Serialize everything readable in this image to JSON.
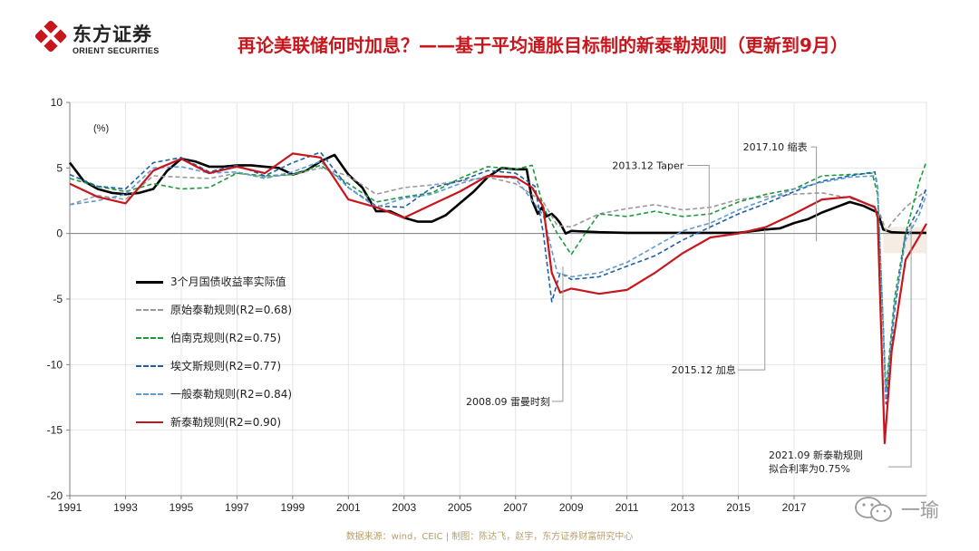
{
  "header": {
    "logo_cn": "东方证券",
    "logo_en": "ORIENT SECURITIES",
    "title": "再论美联储何时加息？——基于平均通胀目标制的新泰勒规则（更新到9月）",
    "brand_color": "#c8161d"
  },
  "footer": {
    "source": "数据来源：wind，CEIC | 制图：陈达飞，赵宇，东方证券财富研究中心"
  },
  "watermark": {
    "name": "一瑜"
  },
  "chart_data": {
    "type": "line",
    "title": "",
    "unit_label": "(%)",
    "xlim": [
      1991,
      2021.75
    ],
    "ylim": [
      -20,
      10
    ],
    "x_ticks": [
      1991,
      1993,
      1995,
      1997,
      1999,
      2001,
      2003,
      2005,
      2007,
      2009,
      2011,
      2013,
      2015,
      2017
    ],
    "y_ticks": [
      10,
      5,
      0,
      -5,
      -10,
      -15,
      -20
    ],
    "series": [
      {
        "name": "3个月国债收益率实际值",
        "color": "#000000",
        "dash": "solid",
        "width": 2.6,
        "points": [
          [
            1991,
            5.4
          ],
          [
            1991.5,
            4
          ],
          [
            1992,
            3.4
          ],
          [
            1992.5,
            3.1
          ],
          [
            1993,
            3
          ],
          [
            1993.5,
            3.1
          ],
          [
            1994,
            3.4
          ],
          [
            1994.5,
            4.8
          ],
          [
            1995,
            5.7
          ],
          [
            1995.5,
            5.5
          ],
          [
            1996,
            5.1
          ],
          [
            1996.5,
            5.1
          ],
          [
            1997,
            5.2
          ],
          [
            1997.5,
            5.2
          ],
          [
            1998,
            5.1
          ],
          [
            1998.5,
            5
          ],
          [
            1999,
            4.5
          ],
          [
            1999.5,
            4.8
          ],
          [
            2000,
            5.5
          ],
          [
            2000.5,
            6
          ],
          [
            2001,
            4.5
          ],
          [
            2001.5,
            3.5
          ],
          [
            2002,
            1.7
          ],
          [
            2002.5,
            1.7
          ],
          [
            2003,
            1.2
          ],
          [
            2003.5,
            0.9
          ],
          [
            2004,
            0.9
          ],
          [
            2004.5,
            1.4
          ],
          [
            2005,
            2.3
          ],
          [
            2005.5,
            3.2
          ],
          [
            2006,
            4.3
          ],
          [
            2006.5,
            5
          ],
          [
            2007,
            4.9
          ],
          [
            2007.4,
            4.9
          ],
          [
            2007.6,
            2.5
          ],
          [
            2007.8,
            1.5
          ],
          [
            2007.95,
            2
          ],
          [
            2008.1,
            1.3
          ],
          [
            2008.3,
            1.5
          ],
          [
            2008.45,
            1.2
          ],
          [
            2008.6,
            0.8
          ],
          [
            2008.8,
            0
          ],
          [
            2009,
            0.2
          ],
          [
            2010,
            0.1
          ],
          [
            2011,
            0.05
          ],
          [
            2012,
            0.05
          ],
          [
            2013,
            0.05
          ],
          [
            2014,
            0.05
          ],
          [
            2015,
            0.05
          ],
          [
            2015.95,
            0.3
          ],
          [
            2016.5,
            0.4
          ],
          [
            2017,
            0.8
          ],
          [
            2017.5,
            1.1
          ],
          [
            2018,
            1.6
          ],
          [
            2018.5,
            2
          ],
          [
            2019,
            2.4
          ],
          [
            2019.5,
            2.1
          ],
          [
            2020,
            1.6
          ],
          [
            2020.2,
            0.3
          ],
          [
            2020.5,
            0.1
          ],
          [
            2021,
            0.05
          ],
          [
            2021.75,
            0.05
          ]
        ]
      },
      {
        "name": "原始泰勒规则(R2=0.68)",
        "color": "#9a9a9a",
        "dash": "5,3",
        "width": 1.6,
        "points": [
          [
            1991,
            2.2
          ],
          [
            1992,
            2.9
          ],
          [
            1993,
            2.6
          ],
          [
            1994,
            4.4
          ],
          [
            1995,
            4.3
          ],
          [
            1996,
            4.2
          ],
          [
            1997,
            4.6
          ],
          [
            1998,
            4.3
          ],
          [
            1999,
            4.5
          ],
          [
            2000,
            5
          ],
          [
            2001,
            4.4
          ],
          [
            2002,
            3
          ],
          [
            2003,
            3.5
          ],
          [
            2004,
            3.7
          ],
          [
            2005,
            4
          ],
          [
            2006,
            4.3
          ],
          [
            2007,
            3.8
          ],
          [
            2008,
            2.4
          ],
          [
            2008.5,
            0.6
          ],
          [
            2009,
            0.5
          ],
          [
            2010,
            1.5
          ],
          [
            2011,
            1.9
          ],
          [
            2012,
            2.2
          ],
          [
            2013,
            1.8
          ],
          [
            2014,
            2
          ],
          [
            2015,
            2.6
          ],
          [
            2016,
            2.8
          ],
          [
            2017,
            3
          ],
          [
            2018,
            3.1
          ],
          [
            2019,
            2.7
          ],
          [
            2020,
            2
          ],
          [
            2020.3,
            0.2
          ],
          [
            2020.5,
            0.8
          ],
          [
            2021,
            2
          ],
          [
            2021.75,
            3.3
          ]
        ]
      },
      {
        "name": "伯南克规则(R2=0.75)",
        "color": "#1e9a3a",
        "dash": "5,3",
        "width": 1.6,
        "points": [
          [
            1991,
            4.2
          ],
          [
            1992,
            3.6
          ],
          [
            1993,
            3.2
          ],
          [
            1994,
            3.8
          ],
          [
            1995,
            3.4
          ],
          [
            1996,
            3.5
          ],
          [
            1997,
            4.6
          ],
          [
            1998,
            4.4
          ],
          [
            1999,
            4.5
          ],
          [
            2000,
            5.2
          ],
          [
            2001,
            3.8
          ],
          [
            2002,
            2.4
          ],
          [
            2003,
            2.8
          ],
          [
            2004,
            3.1
          ],
          [
            2005,
            4.2
          ],
          [
            2006,
            5.1
          ],
          [
            2007,
            4.9
          ],
          [
            2007.6,
            5.2
          ],
          [
            2008,
            2
          ],
          [
            2008.5,
            0
          ],
          [
            2009,
            -1.6
          ],
          [
            2009.5,
            0
          ],
          [
            2010,
            1.5
          ],
          [
            2011,
            1.3
          ],
          [
            2012,
            1.7
          ],
          [
            2013,
            1.3
          ],
          [
            2014,
            1.5
          ],
          [
            2015,
            2.4
          ],
          [
            2016,
            3
          ],
          [
            2017,
            3.4
          ],
          [
            2018,
            4.4
          ],
          [
            2019,
            4.5
          ],
          [
            2019.8,
            4.6
          ],
          [
            2020,
            3
          ],
          [
            2020.3,
            -12
          ],
          [
            2020.6,
            -5
          ],
          [
            2021,
            0
          ],
          [
            2021.5,
            4
          ],
          [
            2021.75,
            5.5
          ]
        ]
      },
      {
        "name": "埃文斯规则(R2=0.77)",
        "color": "#1f5fa6",
        "dash": "5,3",
        "width": 1.6,
        "points": [
          [
            1991,
            4.5
          ],
          [
            1992,
            3.6
          ],
          [
            1993,
            3.4
          ],
          [
            1994,
            5.4
          ],
          [
            1995,
            5.8
          ],
          [
            1996,
            4.7
          ],
          [
            1997,
            5.2
          ],
          [
            1998,
            4.4
          ],
          [
            1999,
            5.4
          ],
          [
            2000,
            6.2
          ],
          [
            2001,
            3.5
          ],
          [
            2002,
            2.1
          ],
          [
            2003,
            2
          ],
          [
            2004,
            3.5
          ],
          [
            2005,
            4
          ],
          [
            2006,
            4.8
          ],
          [
            2007,
            4.6
          ],
          [
            2007.7,
            3.6
          ],
          [
            2008,
            0
          ],
          [
            2008.3,
            -5.2
          ],
          [
            2008.6,
            -3
          ],
          [
            2009,
            -3.5
          ],
          [
            2010,
            -3.3
          ],
          [
            2011,
            -2.5
          ],
          [
            2012,
            -1.7
          ],
          [
            2013,
            -0.5
          ],
          [
            2014,
            0.5
          ],
          [
            2015,
            1.5
          ],
          [
            2016,
            2.3
          ],
          [
            2017,
            3.2
          ],
          [
            2018,
            4
          ],
          [
            2019,
            4.4
          ],
          [
            2019.9,
            4.7
          ],
          [
            2020,
            3.5
          ],
          [
            2020.3,
            -13
          ],
          [
            2020.6,
            -6
          ],
          [
            2021,
            0
          ],
          [
            2021.5,
            2
          ],
          [
            2021.75,
            3.5
          ]
        ]
      },
      {
        "name": "一般泰勒规则(R2=0.84)",
        "color": "#5b9bd5",
        "dash": "5,3",
        "width": 1.6,
        "points": [
          [
            1991,
            2.2
          ],
          [
            1992,
            2.5
          ],
          [
            1993,
            3
          ],
          [
            1994,
            5
          ],
          [
            1995,
            5.1
          ],
          [
            1996,
            4.6
          ],
          [
            1997,
            4.7
          ],
          [
            1998,
            4.2
          ],
          [
            1999,
            4.7
          ],
          [
            2000,
            5.5
          ],
          [
            2001,
            3.5
          ],
          [
            2002,
            2
          ],
          [
            2003,
            2.7
          ],
          [
            2004,
            3
          ],
          [
            2005,
            3.8
          ],
          [
            2006,
            4.4
          ],
          [
            2007,
            4.2
          ],
          [
            2008,
            1.4
          ],
          [
            2008.5,
            -3
          ],
          [
            2009,
            -3.3
          ],
          [
            2010,
            -3
          ],
          [
            2011,
            -2.2
          ],
          [
            2012,
            -1
          ],
          [
            2013,
            0.2
          ],
          [
            2014,
            0.8
          ],
          [
            2015,
            1.8
          ],
          [
            2016,
            2.6
          ],
          [
            2017,
            3.4
          ],
          [
            2018,
            3.9
          ],
          [
            2019,
            4.3
          ],
          [
            2019.9,
            4.4
          ],
          [
            2020,
            3.5
          ],
          [
            2020.3,
            -12.5
          ],
          [
            2020.6,
            -5.5
          ],
          [
            2021,
            -0.5
          ],
          [
            2021.5,
            1.5
          ],
          [
            2021.75,
            3
          ]
        ]
      },
      {
        "name": "新泰勒规则(R2=0.90)",
        "color": "#c8161d",
        "dash": "solid",
        "width": 2.2,
        "points": [
          [
            1991,
            3.8
          ],
          [
            1992,
            2.8
          ],
          [
            1993,
            2.3
          ],
          [
            1994,
            4.8
          ],
          [
            1995,
            5.7
          ],
          [
            1996,
            4.6
          ],
          [
            1997,
            5.1
          ],
          [
            1998,
            4.6
          ],
          [
            1999,
            6.1
          ],
          [
            2000,
            5.8
          ],
          [
            2001,
            2.6
          ],
          [
            2002,
            2
          ],
          [
            2003,
            1.2
          ],
          [
            2004,
            2.2
          ],
          [
            2005,
            3.2
          ],
          [
            2006,
            4.4
          ],
          [
            2007,
            4.3
          ],
          [
            2007.6,
            3.5
          ],
          [
            2008,
            2
          ],
          [
            2008.3,
            -3
          ],
          [
            2008.6,
            -4.5
          ],
          [
            2009,
            -4.2
          ],
          [
            2010,
            -4.6
          ],
          [
            2011,
            -4.3
          ],
          [
            2012,
            -3
          ],
          [
            2013,
            -1.5
          ],
          [
            2014,
            -0.3
          ],
          [
            2015,
            0
          ],
          [
            2016,
            0.5
          ],
          [
            2017,
            1.5
          ],
          [
            2018,
            2.6
          ],
          [
            2019,
            2.8
          ],
          [
            2019.9,
            2
          ],
          [
            2020,
            1.2
          ],
          [
            2020.25,
            -16
          ],
          [
            2020.5,
            -9
          ],
          [
            2021,
            -2
          ],
          [
            2021.5,
            -0.2
          ],
          [
            2021.75,
            0.75
          ]
        ]
      }
    ],
    "annotations": [
      {
        "text": "2008.09 雷曼时刻",
        "x": 2008.7,
        "y": -12.8
      },
      {
        "text": "2013.12 Taper",
        "x": 2013.95,
        "y": 5.2
      },
      {
        "text": "2015.12 加息",
        "x": 2015.95,
        "y": -10.4
      },
      {
        "text": "2017.10 缩表",
        "x": 2017.8,
        "y": 6.6
      },
      {
        "text": "2021.09 新泰勒规则",
        "x": 2021.2,
        "y": -17.8
      },
      {
        "text": "拟合利率为0.75%",
        "x": 2021.2,
        "y": -17.8
      }
    ]
  }
}
